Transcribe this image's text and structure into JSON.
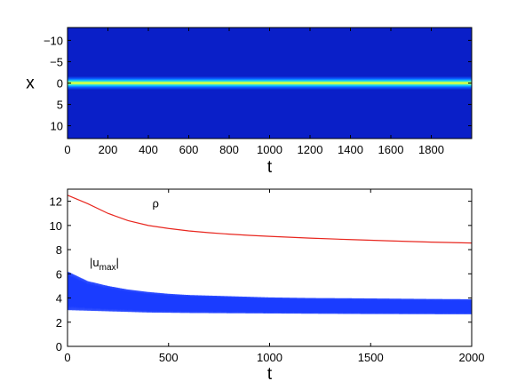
{
  "chart_data": [
    {
      "type": "heatmap",
      "xlabel": "t",
      "ylabel": "x",
      "xlim": [
        0,
        2000
      ],
      "ylim": [
        -13,
        13
      ],
      "y_reversed": true,
      "xticks": [
        0,
        200,
        400,
        600,
        800,
        1000,
        1200,
        1400,
        1600,
        1800
      ],
      "yticks": [
        -10,
        -5,
        0,
        5,
        10
      ],
      "xtick_labels": [
        "0",
        "200",
        "400",
        "600",
        "800",
        "1000",
        "1200",
        "1400",
        "1600",
        "1800"
      ],
      "ytick_labels": [
        "−10",
        "−5",
        "0",
        "5",
        "10"
      ],
      "colormap": "jet",
      "background_color": "#0a1fc8",
      "band": {
        "center_x": 0.0,
        "half_width": 1.0,
        "peak_color": "#c8ff40"
      }
    },
    {
      "type": "line",
      "xlabel": "t",
      "ylabel": "",
      "xlim": [
        0,
        2000
      ],
      "ylim": [
        0,
        13
      ],
      "xticks": [
        0,
        500,
        1000,
        1500,
        2000
      ],
      "yticks": [
        0,
        2,
        4,
        6,
        8,
        10,
        12
      ],
      "xtick_labels": [
        "0",
        "500",
        "1000",
        "1500",
        "2000"
      ],
      "ytick_labels": [
        "0",
        "2",
        "4",
        "6",
        "8",
        "10",
        "12"
      ],
      "grid": false,
      "series": [
        {
          "name": "ρ",
          "color": "#e8261e",
          "x": [
            0,
            100,
            200,
            300,
            400,
            500,
            600,
            700,
            800,
            900,
            1000,
            1200,
            1400,
            1600,
            1800,
            2000
          ],
          "values": [
            12.5,
            11.8,
            11.0,
            10.4,
            10.0,
            9.75,
            9.55,
            9.4,
            9.28,
            9.18,
            9.1,
            8.95,
            8.83,
            8.72,
            8.62,
            8.55
          ]
        },
        {
          "name": "|u",
          "name_sub": "max",
          "name_suffix": "|",
          "color": "#1a3cff",
          "kind": "oscillation_envelope",
          "x": [
            0,
            100,
            200,
            300,
            400,
            500,
            600,
            800,
            1000,
            1200,
            1400,
            1600,
            1800,
            2000
          ],
          "upper": [
            6.2,
            5.4,
            5.0,
            4.7,
            4.5,
            4.35,
            4.25,
            4.15,
            4.05,
            4.0,
            3.98,
            3.95,
            3.92,
            3.9
          ],
          "lower": [
            3.0,
            2.95,
            2.9,
            2.85,
            2.8,
            2.78,
            2.76,
            2.74,
            2.72,
            2.7,
            2.68,
            2.67,
            2.66,
            2.65
          ]
        }
      ],
      "annotations": [
        {
          "text": "ρ",
          "series": 0,
          "x": 420,
          "y": 11.5
        },
        {
          "text": "|u",
          "sub": "max",
          "suffix": "|",
          "series": 1,
          "x": 110,
          "y": 6.6
        }
      ]
    }
  ]
}
